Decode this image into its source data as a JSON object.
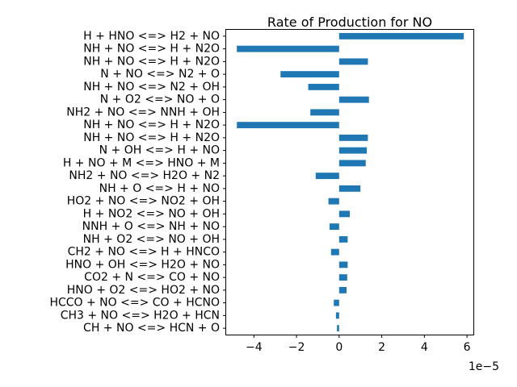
{
  "chart_data": {
    "type": "bar",
    "orientation": "horizontal",
    "title": "Rate of Production for NO",
    "xlabel": "",
    "ylabel": "",
    "x_scale_label": "1e−5",
    "xlim": [
      -5.3,
      6.3
    ],
    "xticks": [
      -4,
      -2,
      0,
      2,
      4,
      6
    ],
    "xtick_labels": [
      "−4",
      "−2",
      "0",
      "2",
      "4",
      "6"
    ],
    "grid": false,
    "bar_color": "#1f77b4",
    "categories": [
      "H + HNO <=> H2 + NO",
      "NH + NO <=> H + N2O",
      "NH + NO <=> H + N2O",
      "N + NO <=> N2 + O",
      "NH + NO <=> N2 + OH",
      "N + O2 <=> NO + O",
      "NH2 + NO <=> NNH + OH",
      "NH + NO <=> H + N2O",
      "NH + NO <=> H + N2O",
      "N + OH <=> H + NO",
      "H + NO + M <=> HNO + M",
      "NH2 + NO <=> H2O + N2",
      "NH + O <=> H + NO",
      "HO2 + NO <=> NO2 + OH",
      "H + NO2 <=> NO + OH",
      "NNH + O <=> NH + NO",
      "NH + O2 <=> NO + OH",
      "CH2 + NO <=> H + HNCO",
      "HNO + OH <=> H2O + NO",
      "CO2 + N <=> CO + NO",
      "HNO + O2 <=> HO2 + NO",
      "HCCO + NO <=> CO + HCNO",
      "CH3 + NO <=> H2O + HCN",
      "CH + NO <=> HCN + O"
    ],
    "values": [
      5.85,
      -4.8,
      1.35,
      -2.75,
      -1.45,
      1.4,
      -1.35,
      -4.8,
      1.35,
      1.3,
      1.25,
      -1.1,
      1.0,
      -0.5,
      0.5,
      -0.45,
      0.4,
      -0.38,
      0.4,
      0.38,
      0.35,
      -0.25,
      -0.15,
      -0.1
    ]
  }
}
